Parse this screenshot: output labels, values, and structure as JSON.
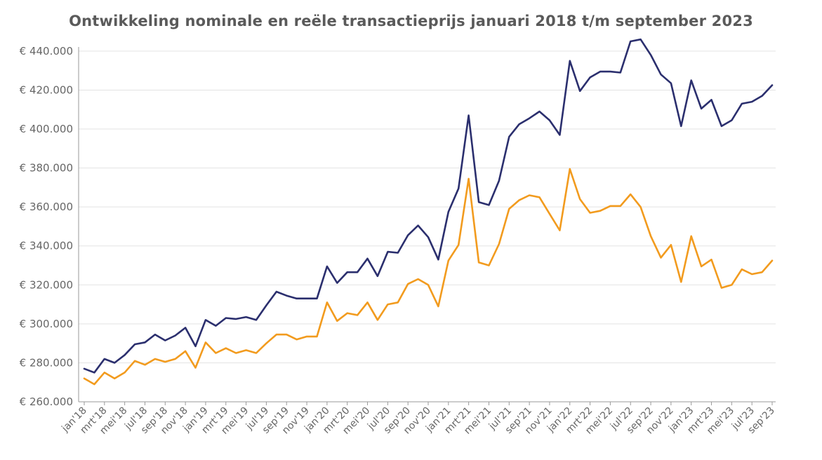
{
  "chart_data": {
    "type": "line",
    "title": "Ontwikkeling nominale en reële transactieprijs januari 2018 t/m september 2023",
    "xlabel": "",
    "ylabel": "",
    "ylim": [
      260000,
      445000
    ],
    "grid": true,
    "yticks": [
      260000,
      280000,
      300000,
      320000,
      340000,
      360000,
      380000,
      400000,
      420000,
      440000
    ],
    "ytick_labels": [
      "€ 260.000",
      "€ 280.000",
      "€ 300.000",
      "€ 320.000",
      "€ 340.000",
      "€ 360.000",
      "€ 380.000",
      "€ 400.000",
      "€ 420.000",
      "€ 440.000"
    ],
    "x_tick_labels": [
      "jan'18",
      "mrt'18",
      "mei'18",
      "jul'18",
      "sep'18",
      "nov'18",
      "jan'19",
      "mrt'19",
      "mei'19",
      "jul'19",
      "sep'19",
      "nov'19",
      "jan'20",
      "mrt'20",
      "mei'20",
      "jul'20",
      "sep'20",
      "nov'20",
      "jan'21",
      "mrt'21",
      "mei'21",
      "jul'21",
      "sep'21",
      "nov'21",
      "jan'22",
      "mrt'22",
      "mei'22",
      "jul'22",
      "sep'22",
      "nov'22",
      "jan'23",
      "mrt'23",
      "mei'23",
      "jul'23",
      "sep'23"
    ],
    "x": [
      "jan'18",
      "feb'18",
      "mrt'18",
      "apr'18",
      "mei'18",
      "jun'18",
      "jul'18",
      "aug'18",
      "sep'18",
      "okt'18",
      "nov'18",
      "dec'18",
      "jan'19",
      "feb'19",
      "mrt'19",
      "apr'19",
      "mei'19",
      "jun'19",
      "jul'19",
      "aug'19",
      "sep'19",
      "okt'19",
      "nov'19",
      "dec'19",
      "jan'20",
      "feb'20",
      "mrt'20",
      "apr'20",
      "mei'20",
      "jun'20",
      "jul'20",
      "aug'20",
      "sep'20",
      "okt'20",
      "nov'20",
      "dec'20",
      "jan'21",
      "feb'21",
      "mrt'21",
      "apr'21",
      "mei'21",
      "jun'21",
      "jul'21",
      "aug'21",
      "sep'21",
      "okt'21",
      "nov'21",
      "dec'21",
      "jan'22",
      "feb'22",
      "mrt'22",
      "apr'22",
      "mei'22",
      "jun'22",
      "jul'22",
      "aug'22",
      "sep'22",
      "okt'22",
      "nov'22",
      "dec'22",
      "jan'23",
      "feb'23",
      "mrt'23",
      "apr'23",
      "mei'23",
      "jun'23",
      "jul'23",
      "aug'23",
      "sep'23"
    ],
    "series": [
      {
        "color": "#2b2f6e",
        "values": [
          277000,
          275000,
          282000,
          280000,
          284000,
          289500,
          290500,
          294500,
          291500,
          294000,
          298000,
          288500,
          302000,
          299000,
          303000,
          302500,
          303500,
          302000,
          309500,
          316500,
          314500,
          313000,
          313000,
          313000,
          329500,
          321000,
          326500,
          326500,
          333500,
          324500,
          337000,
          336500,
          345500,
          350500,
          344500,
          333000,
          357500,
          369500,
          407000,
          362500,
          361000,
          373500,
          396000,
          402500,
          405500,
          409000,
          404500,
          397000,
          435000,
          419500,
          426500,
          429500,
          429500,
          429000,
          445000,
          446000,
          438000,
          428000,
          423500,
          401500,
          425000,
          410500,
          415000,
          401500,
          404500,
          413000,
          414000,
          417000,
          422500
        ]
      },
      {
        "color": "#f29b1e",
        "values": [
          272000,
          269000,
          275000,
          272000,
          275000,
          281000,
          279000,
          282000,
          280500,
          282000,
          286000,
          277500,
          290500,
          285000,
          287500,
          285000,
          286500,
          285000,
          290000,
          294500,
          294500,
          292000,
          293500,
          293500,
          311000,
          301500,
          305500,
          304500,
          311000,
          302000,
          310000,
          311000,
          320500,
          323000,
          320000,
          309000,
          332500,
          340500,
          374500,
          331500,
          330000,
          341000,
          359000,
          363500,
          366000,
          365000,
          356500,
          348000,
          379500,
          364000,
          357000,
          358000,
          360500,
          360500,
          366500,
          360000,
          345000,
          334000,
          340500,
          321500,
          345000,
          329500,
          333000,
          318500,
          320000,
          328000,
          325500,
          326500,
          332500
        ]
      }
    ]
  }
}
